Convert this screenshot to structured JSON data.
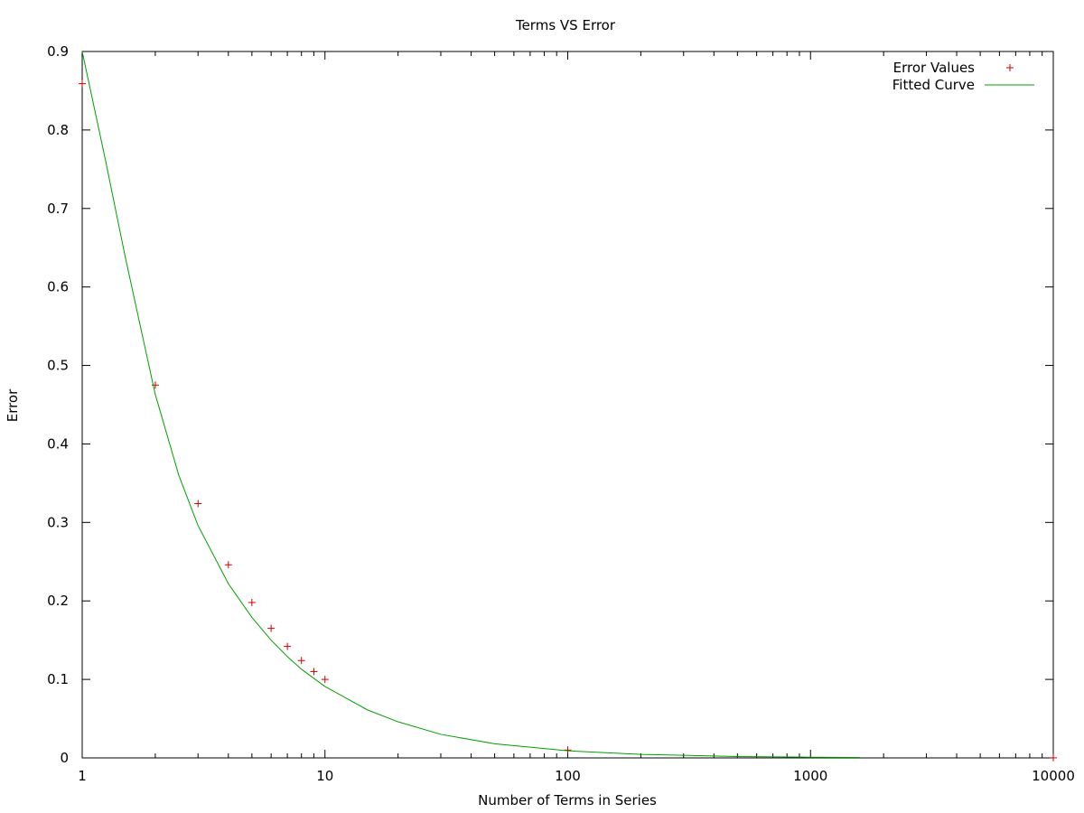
{
  "chart_data": {
    "type": "scatter",
    "title": "Terms VS Error",
    "xlabel": "Number of Terms in Series",
    "ylabel": "Error",
    "x_scale": "log",
    "xlim": [
      1,
      10000
    ],
    "ylim": [
      0,
      0.9
    ],
    "x_ticks": [
      "1",
      "10",
      "100",
      "1000",
      "10000"
    ],
    "y_ticks": [
      "0",
      "0.1",
      "0.2",
      "0.3",
      "0.4",
      "0.5",
      "0.6",
      "0.7",
      "0.8",
      "0.9"
    ],
    "grid": false,
    "legend_position": "top-right",
    "series": [
      {
        "name": "Error Values",
        "style": "points",
        "marker": "plus",
        "color": "#cc0000",
        "x": [
          1,
          2,
          3,
          4,
          5,
          6,
          7,
          8,
          9,
          10,
          100,
          10000
        ],
        "y": [
          0.859,
          0.475,
          0.324,
          0.246,
          0.198,
          0.165,
          0.142,
          0.124,
          0.11,
          0.1,
          0.01,
          0.0001
        ]
      },
      {
        "name": "Fitted Curve",
        "style": "line",
        "color": "#00a000",
        "x": [
          1,
          1.25,
          1.5,
          1.75,
          2,
          2.5,
          3,
          4,
          5,
          6,
          7,
          8,
          10,
          15,
          20,
          30,
          50,
          100,
          200,
          500,
          1000,
          1600
        ],
        "y": [
          0.9,
          0.76,
          0.64,
          0.545,
          0.463,
          0.36,
          0.296,
          0.222,
          0.179,
          0.15,
          0.129,
          0.113,
          0.091,
          0.061,
          0.046,
          0.03,
          0.018,
          0.009,
          0.0045,
          0.0018,
          0.0009,
          0.0006
        ]
      }
    ]
  }
}
